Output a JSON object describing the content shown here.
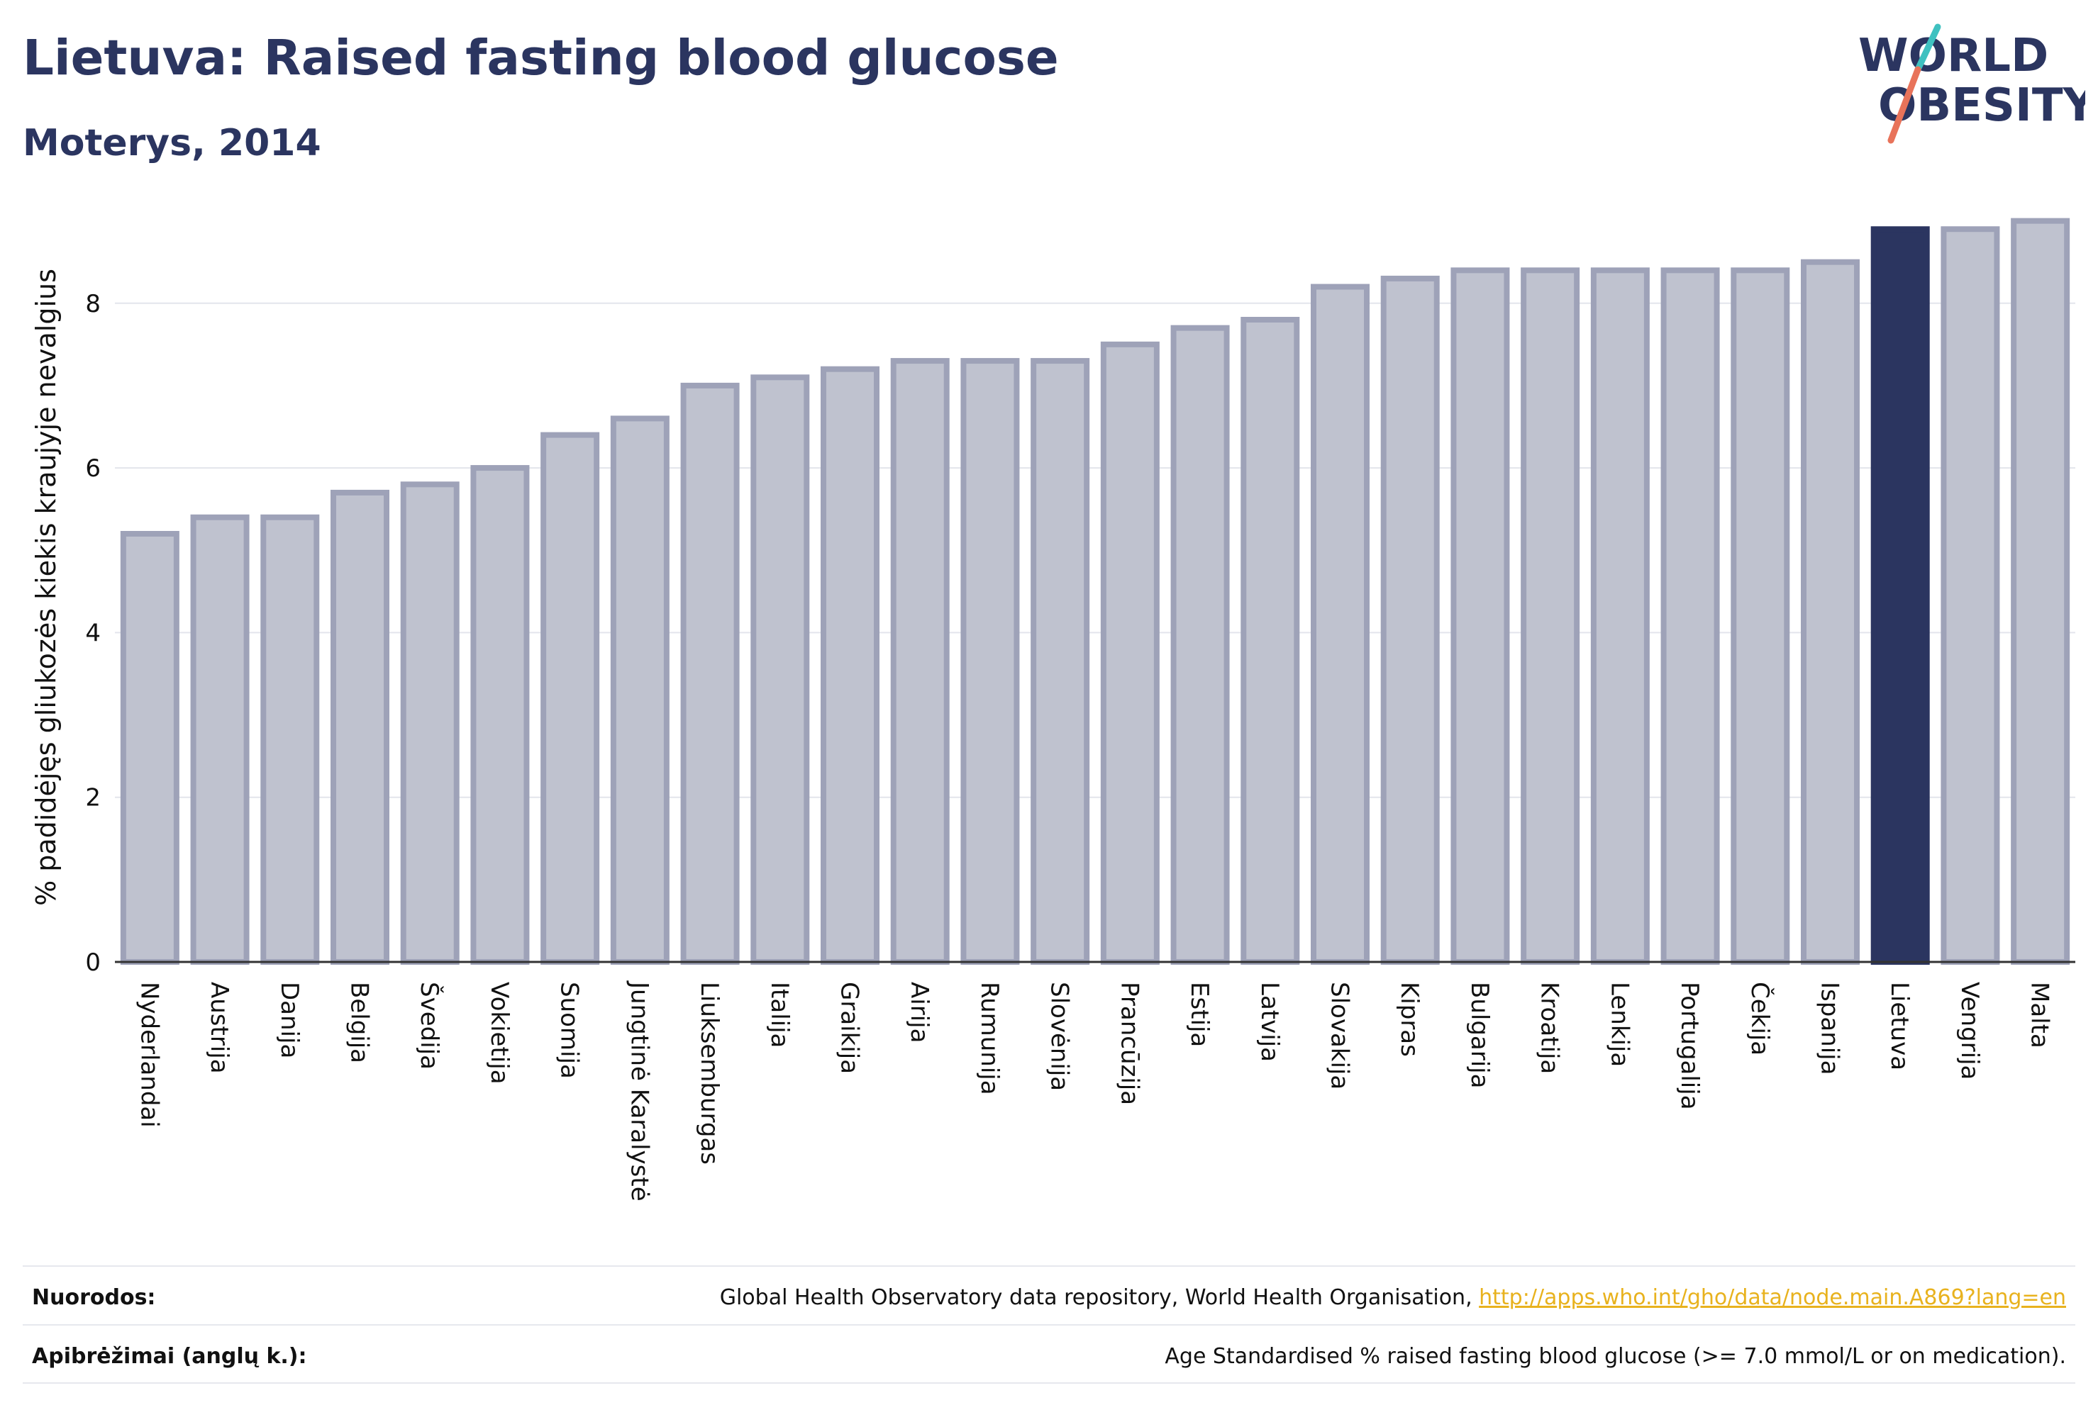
{
  "header": {
    "title": "Lietuva: Raised fasting blood glucose",
    "subtitle": "Moterys, 2014"
  },
  "logo": {
    "line1": "WORLD",
    "line2": "OBESITY"
  },
  "colors": {
    "bar_fill": "#bfc2cf",
    "bar_stroke": "#9ea2b8",
    "highlight": "#2b3560",
    "grid": "#e3e5ec",
    "text": "#111111",
    "logo_teal": "#3fc1c0",
    "logo_coral": "#e8735a"
  },
  "chart_data": {
    "type": "bar",
    "ylabel": "% padidėjęs gliukozės kiekis kraujyje nevalgius",
    "ylim": [
      0,
      9.1
    ],
    "yticks": [
      0,
      2,
      4,
      6,
      8
    ],
    "grid": true,
    "highlight_category": "Lietuva",
    "categories": [
      "Nyderlandai",
      "Austrija",
      "Danija",
      "Belgija",
      "Švedija",
      "Vokietija",
      "Suomija",
      "Jungtinė Karalystė",
      "Liuksemburgas",
      "Italija",
      "Graikija",
      "Airija",
      "Rumunija",
      "Slovėnija",
      "Prancūzija",
      "Estija",
      "Latvija",
      "Slovakija",
      "Kipras",
      "Bulgarija",
      "Kroatija",
      "Lenkija",
      "Portugalija",
      "Čekija",
      "Ispanija",
      "Lietuva",
      "Vengrija",
      "Malta"
    ],
    "values": [
      5.2,
      5.4,
      5.4,
      5.7,
      5.8,
      6.0,
      6.4,
      6.6,
      7.0,
      7.1,
      7.2,
      7.3,
      7.3,
      7.3,
      7.5,
      7.7,
      7.8,
      8.2,
      8.3,
      8.4,
      8.4,
      8.4,
      8.4,
      8.4,
      8.5,
      8.9,
      8.9,
      9.0
    ]
  },
  "footer": {
    "references_label": "Nuorodos:",
    "references_text": "Global Health Observatory data repository, World Health Organisation, ",
    "references_link": "http://apps.who.int/gho/data/node.main.A869?lang=en",
    "definitions_label": "Apibrėžimai (anglų k.):",
    "definitions_text": "Age Standardised % raised fasting blood glucose (>= 7.0 mmol/L or on medication)."
  }
}
